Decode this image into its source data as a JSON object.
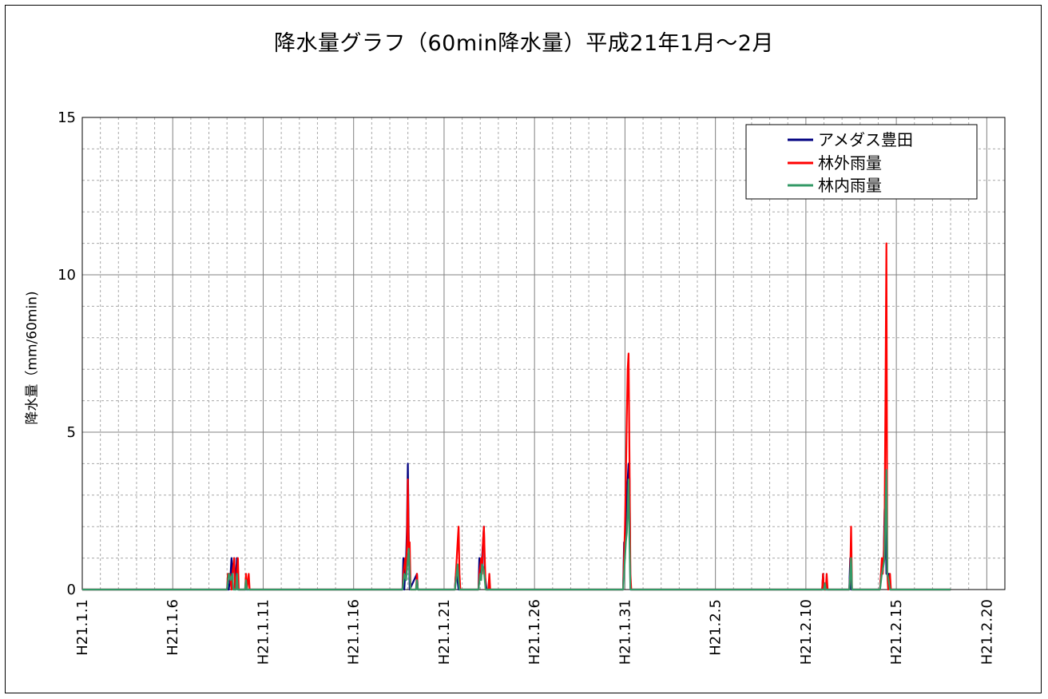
{
  "chart_data": {
    "type": "line",
    "title": "降水量グラフ（60min降水量）平成21年1月～2月",
    "xlabel": "",
    "ylabel": "降水量（mm/60min)",
    "ylim": [
      0,
      15
    ],
    "yticks": [
      0,
      5,
      10,
      15
    ],
    "x_start": "H21.1.1",
    "x_end_days": 51,
    "xticks": [
      {
        "day": 0,
        "label": "H21.1.1"
      },
      {
        "day": 5,
        "label": "H21.1.6"
      },
      {
        "day": 10,
        "label": "H21.1.11"
      },
      {
        "day": 15,
        "label": "H21.1.16"
      },
      {
        "day": 20,
        "label": "H21.1.21"
      },
      {
        "day": 25,
        "label": "H21.1.26"
      },
      {
        "day": 30,
        "label": "H21.1.31"
      },
      {
        "day": 35,
        "label": "H21.2.5"
      },
      {
        "day": 40,
        "label": "H21.2.10"
      },
      {
        "day": 45,
        "label": "H21.2.15"
      },
      {
        "day": 50,
        "label": "H21.2.20"
      }
    ],
    "grid": true,
    "legend_position": "top-right",
    "series": [
      {
        "name": "アメダス豊田",
        "color": "#000080",
        "points": [
          [
            8.1,
            0
          ],
          [
            8.2,
            0.5
          ],
          [
            8.25,
            1.0
          ],
          [
            8.3,
            0.5
          ],
          [
            8.4,
            1.0
          ],
          [
            8.45,
            0
          ],
          [
            8.55,
            1.0
          ],
          [
            8.6,
            0
          ],
          [
            17.7,
            0
          ],
          [
            17.75,
            1.0
          ],
          [
            17.8,
            0
          ],
          [
            17.9,
            1.0
          ],
          [
            17.95,
            2.0
          ],
          [
            18.0,
            4.0
          ],
          [
            18.05,
            1.5
          ],
          [
            18.1,
            0
          ],
          [
            18.5,
            0.5
          ],
          [
            18.55,
            0
          ],
          [
            20.6,
            0
          ],
          [
            20.65,
            0.5
          ],
          [
            20.7,
            0.5
          ],
          [
            20.8,
            0
          ],
          [
            21.9,
            0
          ],
          [
            21.95,
            1.0
          ],
          [
            22.0,
            0.5
          ],
          [
            22.1,
            1.0
          ],
          [
            22.2,
            2.0
          ],
          [
            22.25,
            0.5
          ],
          [
            22.35,
            0
          ],
          [
            29.9,
            0
          ],
          [
            29.95,
            1.5
          ],
          [
            30.0,
            1.5
          ],
          [
            30.1,
            3.0
          ],
          [
            30.15,
            3.5
          ],
          [
            30.2,
            4.0
          ],
          [
            30.25,
            3.5
          ],
          [
            30.3,
            0
          ],
          [
            40.9,
            0
          ],
          [
            40.95,
            0.5
          ],
          [
            41.0,
            0
          ],
          [
            42.4,
            0
          ],
          [
            42.45,
            1.0
          ],
          [
            42.5,
            0
          ],
          [
            44.1,
            0
          ],
          [
            44.15,
            0.5
          ],
          [
            44.2,
            0.5
          ],
          [
            44.3,
            1.0
          ],
          [
            44.35,
            2.5
          ],
          [
            44.4,
            3.0
          ],
          [
            44.45,
            0.5
          ],
          [
            44.6,
            0.5
          ],
          [
            44.65,
            0
          ]
        ]
      },
      {
        "name": "林外雨量",
        "color": "#ff0000",
        "points": [
          [
            8.0,
            0
          ],
          [
            8.05,
            0.5
          ],
          [
            8.15,
            0.5
          ],
          [
            8.25,
            0
          ],
          [
            8.3,
            0.5
          ],
          [
            8.4,
            1.0
          ],
          [
            8.45,
            0
          ],
          [
            8.55,
            0.5
          ],
          [
            8.6,
            1.0
          ],
          [
            8.65,
            0
          ],
          [
            9.0,
            0
          ],
          [
            9.05,
            0.5
          ],
          [
            9.1,
            0
          ],
          [
            9.2,
            0.5
          ],
          [
            9.25,
            0
          ],
          [
            17.7,
            0
          ],
          [
            17.75,
            0.5
          ],
          [
            17.85,
            1.0
          ],
          [
            17.9,
            0.5
          ],
          [
            17.95,
            1.5
          ],
          [
            18.0,
            3.5
          ],
          [
            18.05,
            1.0
          ],
          [
            18.1,
            1.5
          ],
          [
            18.15,
            0
          ],
          [
            18.45,
            0
          ],
          [
            18.5,
            0.5
          ],
          [
            18.55,
            0
          ],
          [
            20.6,
            0
          ],
          [
            20.65,
            0.5
          ],
          [
            20.7,
            1.0
          ],
          [
            20.75,
            1.5
          ],
          [
            20.8,
            2.0
          ],
          [
            20.85,
            0.5
          ],
          [
            20.9,
            0
          ],
          [
            21.9,
            0
          ],
          [
            21.95,
            0.5
          ],
          [
            22.05,
            1.0
          ],
          [
            22.1,
            0.5
          ],
          [
            22.15,
            1.5
          ],
          [
            22.2,
            2.0
          ],
          [
            22.25,
            1.0
          ],
          [
            22.3,
            0
          ],
          [
            22.45,
            0
          ],
          [
            22.5,
            0.5
          ],
          [
            22.55,
            0
          ],
          [
            29.9,
            0
          ],
          [
            29.95,
            1.0
          ],
          [
            30.0,
            2.0
          ],
          [
            30.05,
            3.5
          ],
          [
            30.1,
            5.5
          ],
          [
            30.15,
            7.0
          ],
          [
            30.2,
            7.5
          ],
          [
            30.25,
            4.0
          ],
          [
            30.3,
            0.5
          ],
          [
            30.35,
            0
          ],
          [
            40.9,
            0
          ],
          [
            40.95,
            0.5
          ],
          [
            41.0,
            0
          ],
          [
            41.1,
            0
          ],
          [
            41.15,
            0.5
          ],
          [
            41.2,
            0
          ],
          [
            42.4,
            0
          ],
          [
            42.45,
            0.5
          ],
          [
            42.5,
            2.0
          ],
          [
            42.55,
            0
          ],
          [
            44.1,
            0
          ],
          [
            44.15,
            0.5
          ],
          [
            44.2,
            1.0
          ],
          [
            44.25,
            0.5
          ],
          [
            44.3,
            1.0
          ],
          [
            44.35,
            2.0
          ],
          [
            44.4,
            6.0
          ],
          [
            44.45,
            11.0
          ],
          [
            44.5,
            0.5
          ],
          [
            44.55,
            0
          ],
          [
            44.65,
            0.5
          ],
          [
            44.7,
            0
          ]
        ]
      },
      {
        "name": "林内雨量",
        "color": "#339966",
        "points": [
          [
            8.0,
            0
          ],
          [
            8.1,
            0.5
          ],
          [
            8.2,
            0.3
          ],
          [
            8.3,
            0.5
          ],
          [
            8.35,
            0
          ],
          [
            8.5,
            0
          ],
          [
            8.55,
            0.5
          ],
          [
            8.6,
            0
          ],
          [
            9.0,
            0
          ],
          [
            9.05,
            0.3
          ],
          [
            9.1,
            0
          ],
          [
            17.7,
            0
          ],
          [
            17.8,
            0.5
          ],
          [
            17.9,
            0.3
          ],
          [
            18.0,
            1.0
          ],
          [
            18.05,
            1.3
          ],
          [
            18.1,
            0.5
          ],
          [
            18.15,
            0
          ],
          [
            18.45,
            0
          ],
          [
            18.5,
            0.3
          ],
          [
            18.55,
            0
          ],
          [
            20.6,
            0
          ],
          [
            20.7,
            0.5
          ],
          [
            20.75,
            0.8
          ],
          [
            20.8,
            0.3
          ],
          [
            20.85,
            0
          ],
          [
            21.9,
            0
          ],
          [
            22.0,
            0.5
          ],
          [
            22.05,
            0.3
          ],
          [
            22.1,
            0.8
          ],
          [
            22.2,
            0.6
          ],
          [
            22.3,
            0
          ],
          [
            29.9,
            0
          ],
          [
            30.0,
            1.0
          ],
          [
            30.05,
            1.5
          ],
          [
            30.1,
            1.8
          ],
          [
            30.15,
            2.5
          ],
          [
            30.2,
            3.5
          ],
          [
            30.25,
            1.5
          ],
          [
            30.3,
            0
          ],
          [
            41.0,
            0
          ],
          [
            41.05,
            0.2
          ],
          [
            41.1,
            0
          ],
          [
            42.4,
            0
          ],
          [
            42.45,
            0.5
          ],
          [
            42.5,
            1.0
          ],
          [
            42.55,
            0
          ],
          [
            44.1,
            0
          ],
          [
            44.2,
            0.5
          ],
          [
            44.3,
            0.8
          ],
          [
            44.35,
            1.0
          ],
          [
            44.4,
            2.5
          ],
          [
            44.45,
            3.8
          ],
          [
            44.5,
            0.5
          ],
          [
            44.6,
            0.2
          ],
          [
            44.65,
            0
          ]
        ]
      }
    ]
  }
}
